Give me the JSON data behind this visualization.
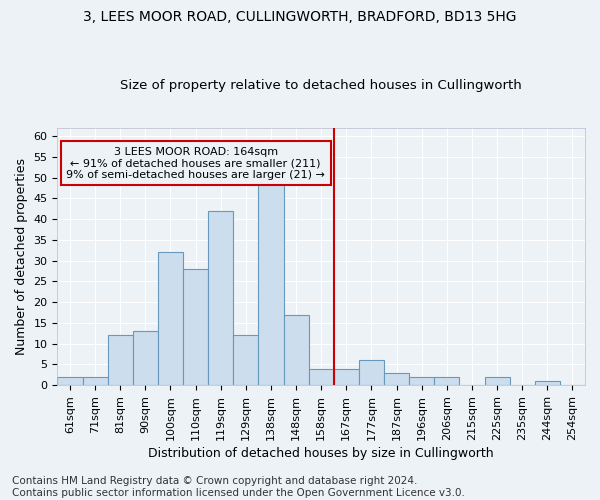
{
  "title_line1": "3, LEES MOOR ROAD, CULLINGWORTH, BRADFORD, BD13 5HG",
  "title_line2": "Size of property relative to detached houses in Cullingworth",
  "xlabel": "Distribution of detached houses by size in Cullingworth",
  "ylabel": "Number of detached properties",
  "categories": [
    "61sqm",
    "71sqm",
    "81sqm",
    "90sqm",
    "100sqm",
    "110sqm",
    "119sqm",
    "129sqm",
    "138sqm",
    "148sqm",
    "158sqm",
    "167sqm",
    "177sqm",
    "187sqm",
    "196sqm",
    "206sqm",
    "215sqm",
    "225sqm",
    "235sqm",
    "244sqm",
    "254sqm"
  ],
  "values": [
    2,
    2,
    12,
    13,
    32,
    28,
    42,
    12,
    49,
    17,
    4,
    4,
    6,
    3,
    2,
    2,
    0,
    2,
    0,
    1,
    0
  ],
  "bar_color": "#ccdded",
  "bar_edge_color": "#6699bb",
  "vline_x_idx": 10.5,
  "vline_color": "#cc0000",
  "annotation_text": "3 LEES MOOR ROAD: 164sqm\n← 91% of detached houses are smaller (211)\n9% of semi-detached houses are larger (21) →",
  "annotation_box_color": "#cc0000",
  "ylim": [
    0,
    62
  ],
  "yticks": [
    0,
    5,
    10,
    15,
    20,
    25,
    30,
    35,
    40,
    45,
    50,
    55,
    60
  ],
  "footnote": "Contains HM Land Registry data © Crown copyright and database right 2024.\nContains public sector information licensed under the Open Government Licence v3.0.",
  "bg_color": "#edf2f7",
  "grid_color": "#ffffff",
  "title_fontsize": 10,
  "subtitle_fontsize": 9.5,
  "tick_fontsize": 8,
  "ylabel_fontsize": 9,
  "xlabel_fontsize": 9,
  "footnote_fontsize": 7.5
}
